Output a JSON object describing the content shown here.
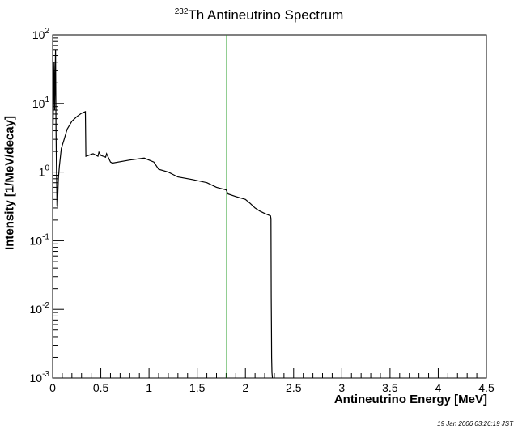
{
  "chart_data": {
    "type": "line",
    "title_sup": "232",
    "title_main": "Th Antineutrino Spectrum",
    "xlabel": "Antineutrino Energy [MeV]",
    "ylabel": "Intensity [1/MeV/decay]",
    "xlim": [
      0,
      4.5
    ],
    "ylim": [
      0.001,
      100
    ],
    "yscale": "log",
    "grid": false,
    "x_ticks": [
      "0",
      "0.5",
      "1",
      "1.5",
      "2",
      "2.5",
      "3",
      "3.5",
      "4",
      "4.5"
    ],
    "y_ticks": [
      {
        "base": "10",
        "exp": "-3"
      },
      {
        "base": "10",
        "exp": "-2"
      },
      {
        "base": "10",
        "exp": "-1"
      },
      {
        "base": "1",
        "exp": "0"
      },
      {
        "base": "10",
        "exp": "1"
      },
      {
        "base": "10",
        "exp": "2"
      }
    ],
    "vertical_line": {
      "x": 1.806,
      "color": "#1f9a1f"
    },
    "series": [
      {
        "color": "#000000",
        "x": [
          0.005,
          0.015,
          0.02,
          0.03,
          0.035,
          0.04,
          0.045,
          0.05,
          0.055,
          0.06,
          0.07,
          0.09,
          0.12,
          0.15,
          0.2,
          0.25,
          0.3,
          0.34,
          0.345,
          0.42,
          0.47,
          0.48,
          0.5,
          0.55,
          0.56,
          0.6,
          0.62,
          0.8,
          0.95,
          1.05,
          1.1,
          1.2,
          1.3,
          1.45,
          1.6,
          1.7,
          1.8,
          1.82,
          1.9,
          2.0,
          2.05,
          2.1,
          2.15,
          2.2,
          2.26,
          2.265,
          2.268,
          2.27,
          2.272,
          2.275,
          2.278,
          2.28
        ],
        "y": [
          5,
          40,
          8,
          60,
          4,
          1,
          0.33,
          0.31,
          0.55,
          0.8,
          1.2,
          2.2,
          3.0,
          4.2,
          5.5,
          6.4,
          7.2,
          7.6,
          1.7,
          1.85,
          1.7,
          1.95,
          1.75,
          1.65,
          1.85,
          1.4,
          1.35,
          1.5,
          1.6,
          1.4,
          1.1,
          1.0,
          0.85,
          0.78,
          0.7,
          0.6,
          0.55,
          0.48,
          0.44,
          0.4,
          0.35,
          0.3,
          0.27,
          0.25,
          0.23,
          0.21,
          0.015,
          0.005,
          0.002,
          0.0012,
          0.0011,
          0.001
        ]
      }
    ]
  },
  "timestamp": "19 Jan 2006 03:26:19 JST"
}
